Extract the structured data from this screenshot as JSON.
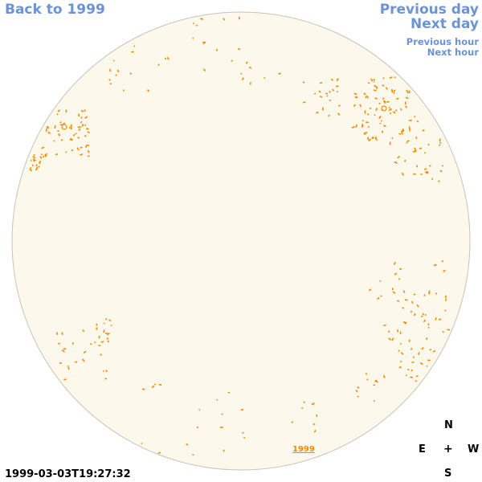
{
  "nav": {
    "back_label": "Back to 1999",
    "previous_day": "Previous day",
    "next_day": "Next day",
    "previous_hour": "Previous hour",
    "next_hour": "Next hour"
  },
  "compass": {
    "north": "N",
    "east": "E",
    "center": "+",
    "west": "W",
    "south": "S"
  },
  "timestamp": "1999-03-03T19:27:32",
  "year_label": "1999",
  "colors": {
    "disk_fill": "#fdf8ec",
    "disk_outline": "#c9c3b4",
    "feature": "#f08c00",
    "link": "#6b93d6"
  }
}
